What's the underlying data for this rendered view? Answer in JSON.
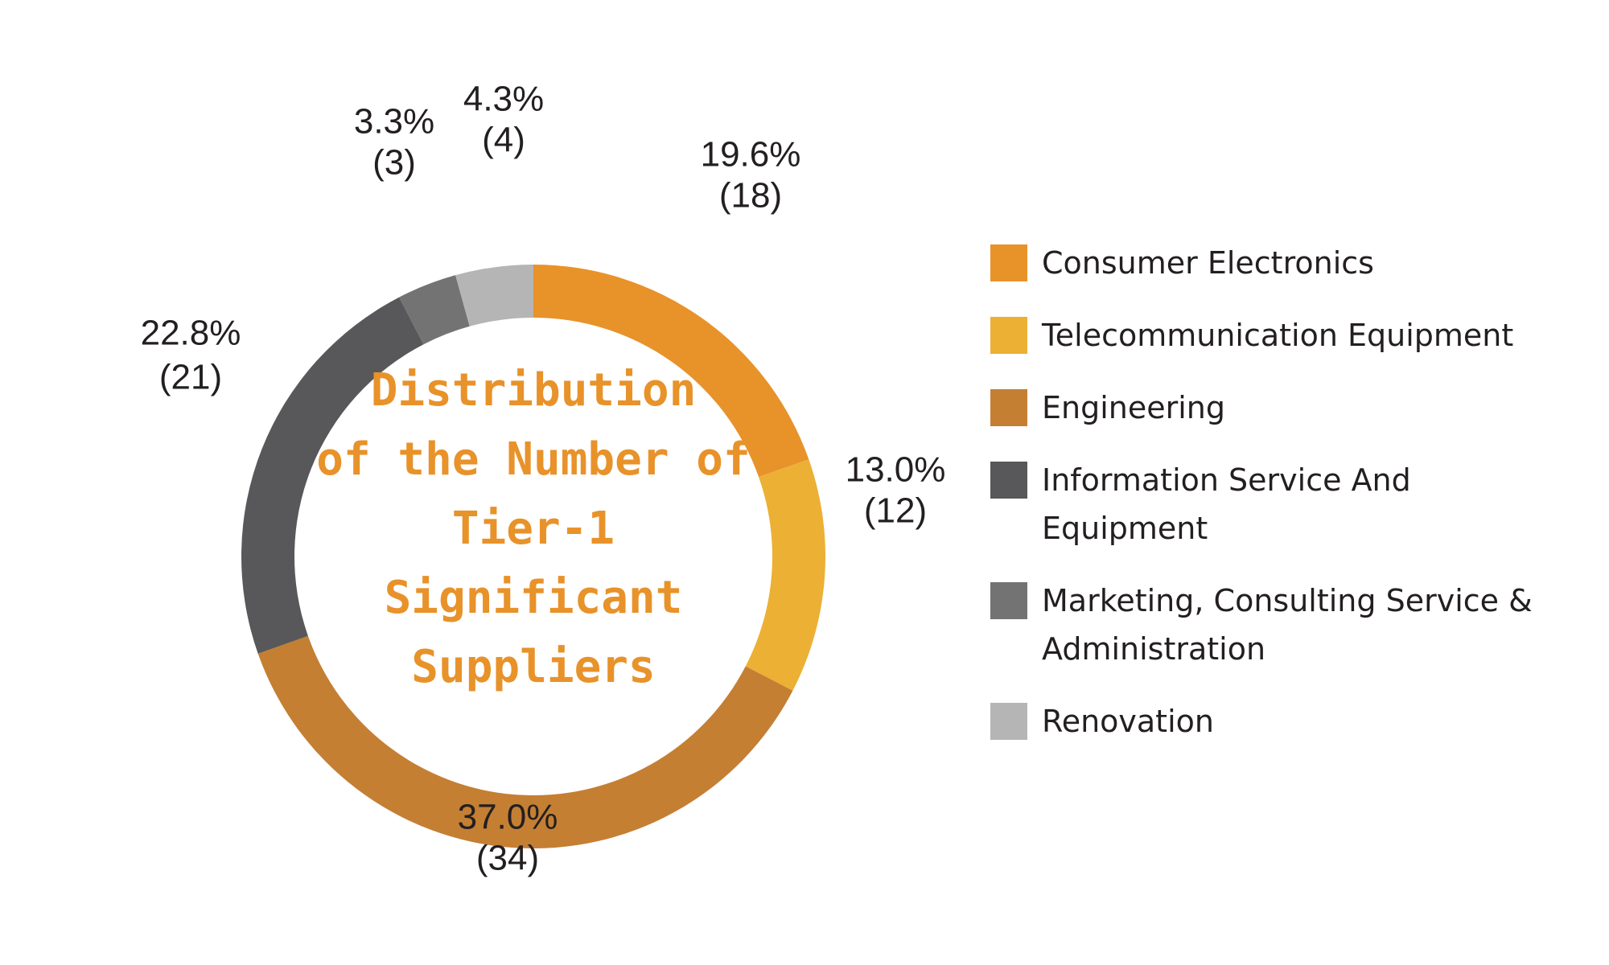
{
  "chart_data": {
    "type": "donut",
    "title": "Distribution\nof the Number of\nTier-1 Significant\nSuppliers",
    "categories": [
      "Consumer Electronics",
      "Telecommunication Equipment",
      "Engineering",
      "Information Service And Equipment",
      "Marketing, Consulting Service & Administration",
      "Renovation"
    ],
    "values": [
      19.6,
      13.0,
      37.0,
      22.8,
      3.3,
      4.3
    ],
    "value_labels": [
      "19.6%",
      "13.0%",
      "37.0%",
      "22.8%",
      "3.3%",
      "4.3%"
    ],
    "count_labels": [
      "(18)",
      "(12)",
      "(34)",
      "(21)",
      "(3)",
      "(4)"
    ],
    "colors": [
      "#e8922a",
      "#ecb035",
      "#c47f33",
      "#58585a",
      "#737373",
      "#b5b5b6"
    ],
    "legend": "right"
  }
}
